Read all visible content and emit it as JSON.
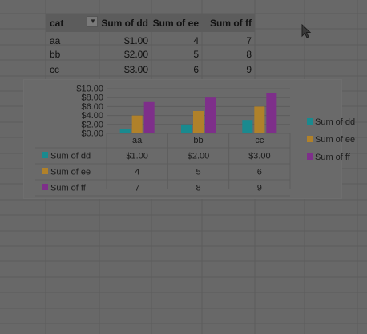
{
  "pivot": {
    "headers": [
      "cat",
      "Sum of dd",
      "Sum of ee",
      "Sum of ff"
    ],
    "rows": [
      {
        "cat": "aa",
        "dd": "$1.00",
        "ee": "4",
        "ff": "7"
      },
      {
        "cat": "bb",
        "dd": "$2.00",
        "ee": "5",
        "ff": "8"
      },
      {
        "cat": "cc",
        "dd": "$3.00",
        "ee": "6",
        "ff": "9"
      }
    ]
  },
  "chart_data": {
    "type": "bar",
    "categories": [
      "aa",
      "bb",
      "cc"
    ],
    "series": [
      {
        "name": "Sum of dd",
        "values": [
          1,
          2,
          3
        ],
        "labels": [
          "$1.00",
          "$2.00",
          "$3.00"
        ],
        "color": "#1a8a8f"
      },
      {
        "name": "Sum of ee",
        "values": [
          4,
          5,
          6
        ],
        "labels": [
          "4",
          "5",
          "6"
        ],
        "color": "#b0812a"
      },
      {
        "name": "Sum of ff",
        "values": [
          7,
          8,
          9
        ],
        "labels": [
          "7",
          "8",
          "9"
        ],
        "color": "#7e2f8a"
      }
    ],
    "y_ticks": [
      "$0.00",
      "$2.00",
      "$4.00",
      "$6.00",
      "$8.00",
      "$10.00"
    ],
    "ylim": [
      0,
      10
    ],
    "grid": true,
    "legend": "right",
    "data_table": true
  }
}
